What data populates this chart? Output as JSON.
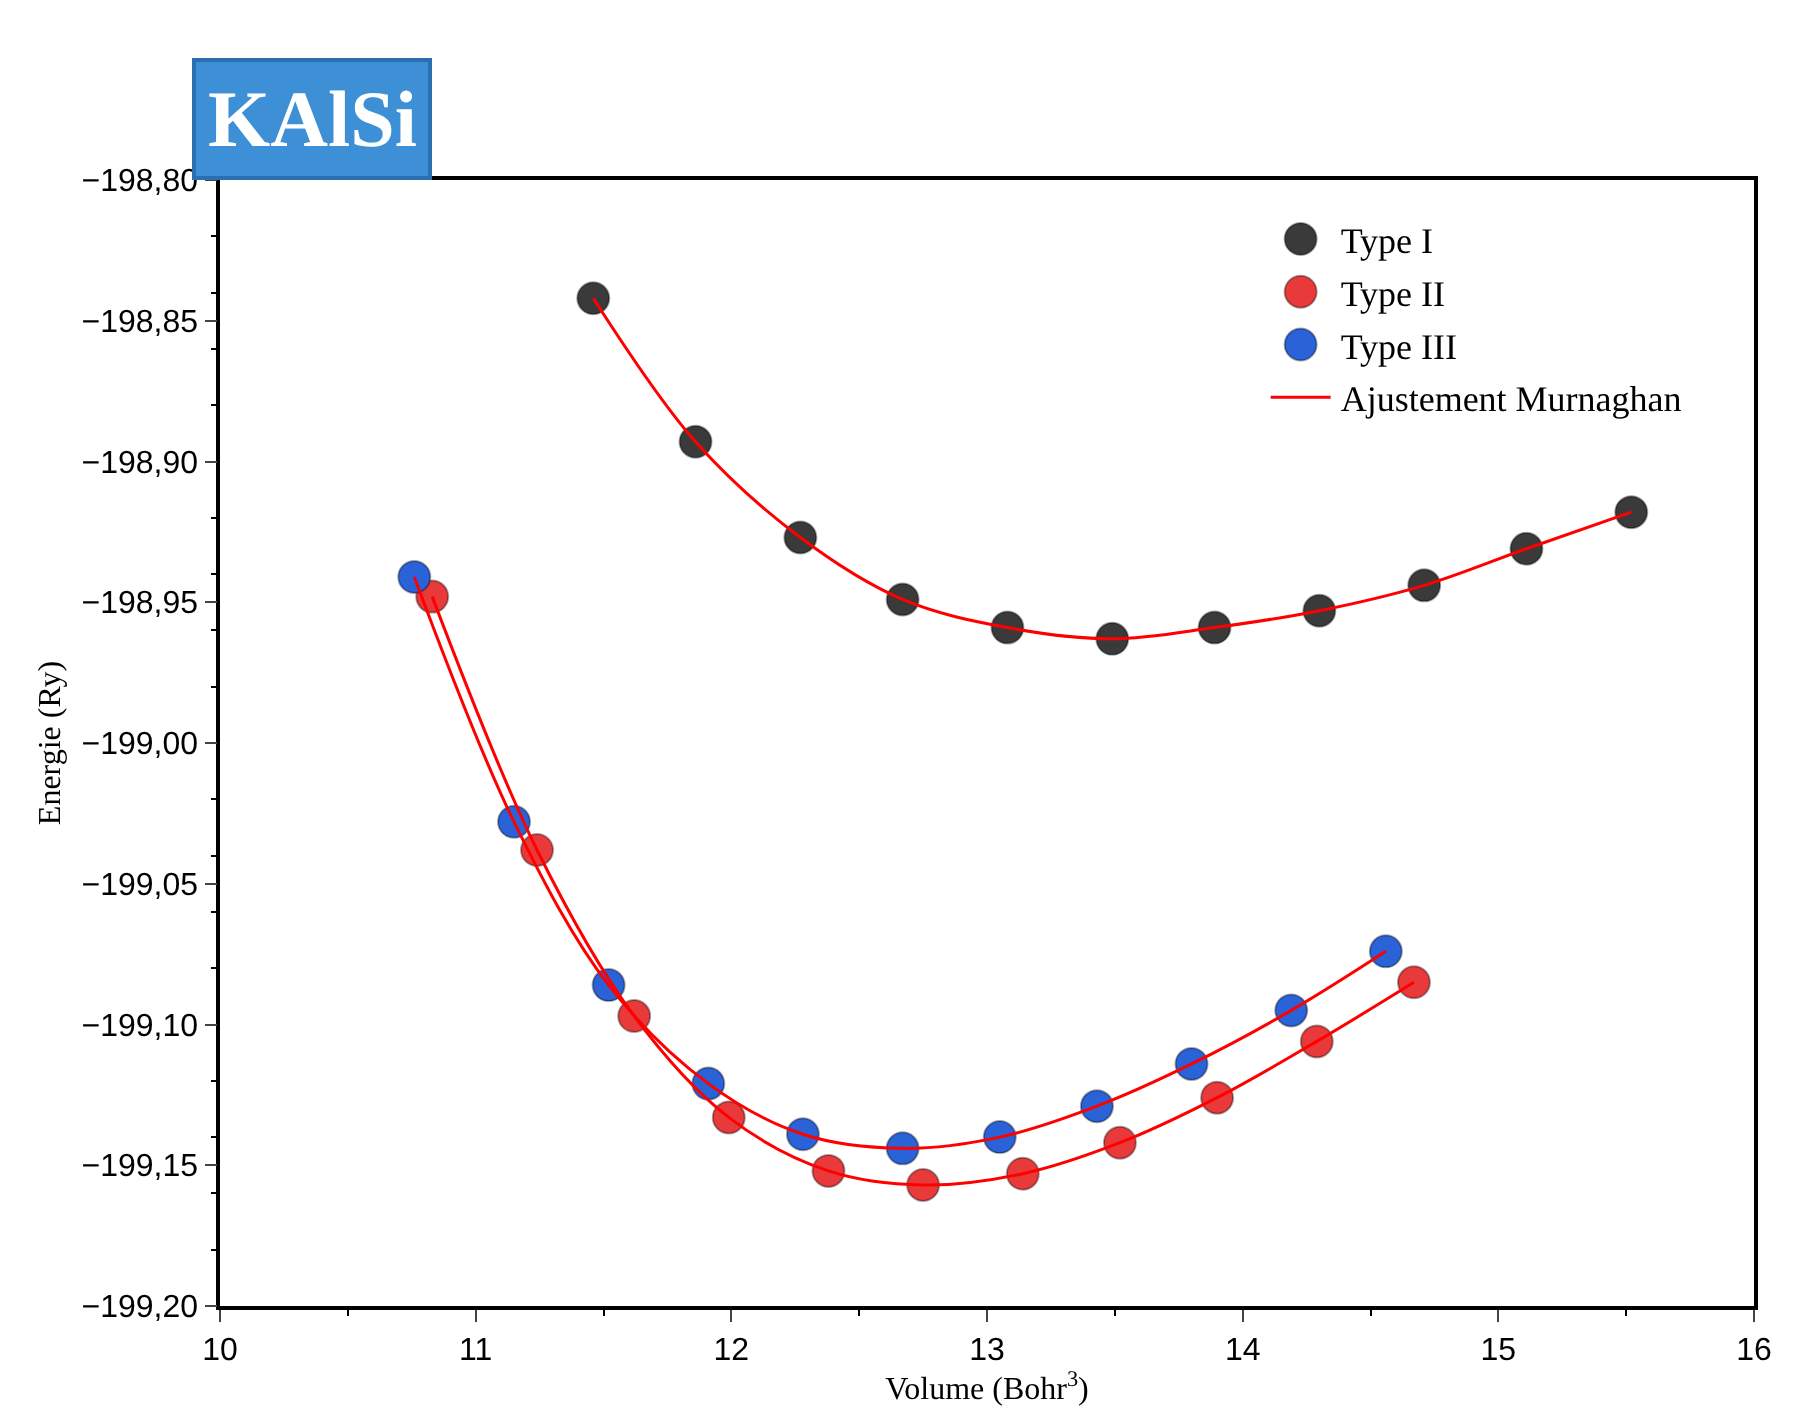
{
  "chart_data": {
    "type": "scatter",
    "title": "KAlSi",
    "xlabel": "Volume (Bohr$^{3}$)",
    "ylabel": "Energie (Ry)",
    "xlim": [
      10,
      16
    ],
    "xticks": [
      10,
      11,
      12,
      13,
      14,
      15,
      16
    ],
    "ylim": [
      -199.2,
      -198.8
    ],
    "yticks": [
      {
        "value": -199.2,
        "label": "−199,20"
      },
      {
        "value": -199.15,
        "label": "−199,15"
      },
      {
        "value": -199.1,
        "label": "−199,10"
      },
      {
        "value": -199.05,
        "label": "−199,05"
      },
      {
        "value": -199.0,
        "label": "−199,00"
      },
      {
        "value": -198.95,
        "label": "−198,95"
      },
      {
        "value": -198.9,
        "label": "−198,90"
      },
      {
        "value": -198.85,
        "label": "−198,85"
      },
      {
        "value": -198.8,
        "label": "−198,80"
      }
    ],
    "legend": "top right",
    "marker": "circle",
    "series": [
      {
        "name": "Type I",
        "color": "#3a3a3a",
        "x": [
          11.46,
          11.86,
          12.27,
          12.67,
          13.08,
          13.49,
          13.89,
          14.3,
          14.71,
          15.11,
          15.52
        ],
        "values": [
          -198.842,
          -198.893,
          -198.927,
          -198.949,
          -198.959,
          -198.963,
          -198.959,
          -198.953,
          -198.944,
          -198.931,
          -198.918
        ]
      },
      {
        "name": "Type II",
        "color": "#e83a3a",
        "x": [
          10.83,
          11.24,
          11.62,
          11.99,
          12.38,
          12.75,
          13.14,
          13.52,
          13.9,
          14.29,
          14.67
        ],
        "values": [
          -198.948,
          -199.038,
          -199.097,
          -199.133,
          -199.152,
          -199.157,
          -199.153,
          -199.142,
          -199.126,
          -199.106,
          -199.085
        ]
      },
      {
        "name": "Type III",
        "color": "#2a62d8",
        "x": [
          10.76,
          11.15,
          11.52,
          11.91,
          12.28,
          12.67,
          13.05,
          13.43,
          13.8,
          14.19,
          14.56
        ],
        "values": [
          -198.941,
          -199.028,
          -199.086,
          -199.121,
          -199.139,
          -199.144,
          -199.14,
          -199.129,
          -199.114,
          -199.095,
          -199.074
        ]
      },
      {
        "name": "Ajustement Murnaghan",
        "type": "line",
        "color": "#ff0000",
        "line_style": "solid",
        "marker": "none",
        "x": [
          11.46,
          11.86,
          12.27,
          12.67,
          13.08,
          13.49,
          13.89,
          14.3,
          14.71,
          15.11,
          15.52
        ],
        "values": [
          -198.842,
          -198.893,
          -198.927,
          -198.949,
          -198.959,
          -198.963,
          -198.959,
          -198.953,
          -198.944,
          -198.931,
          -198.918
        ]
      },
      {
        "type": "line",
        "color": "#ff0000",
        "line_style": "solid",
        "marker": "none",
        "x": [
          10.83,
          11.24,
          11.62,
          11.99,
          12.38,
          12.75,
          13.14,
          13.52,
          13.9,
          14.29,
          14.67
        ],
        "values": [
          -198.948,
          -199.038,
          -199.097,
          -199.133,
          -199.152,
          -199.157,
          -199.153,
          -199.142,
          -199.126,
          -199.106,
          -199.085
        ]
      },
      {
        "type": "line",
        "color": "#ff0000",
        "line_style": "solid",
        "marker": "none",
        "x": [
          10.76,
          11.15,
          11.52,
          11.91,
          12.28,
          12.67,
          13.05,
          13.43,
          13.8,
          14.19,
          14.56
        ],
        "values": [
          -198.941,
          -199.028,
          -199.086,
          -199.121,
          -199.139,
          -199.144,
          -199.14,
          -199.129,
          -199.114,
          -199.095,
          -199.074
        ]
      }
    ]
  }
}
